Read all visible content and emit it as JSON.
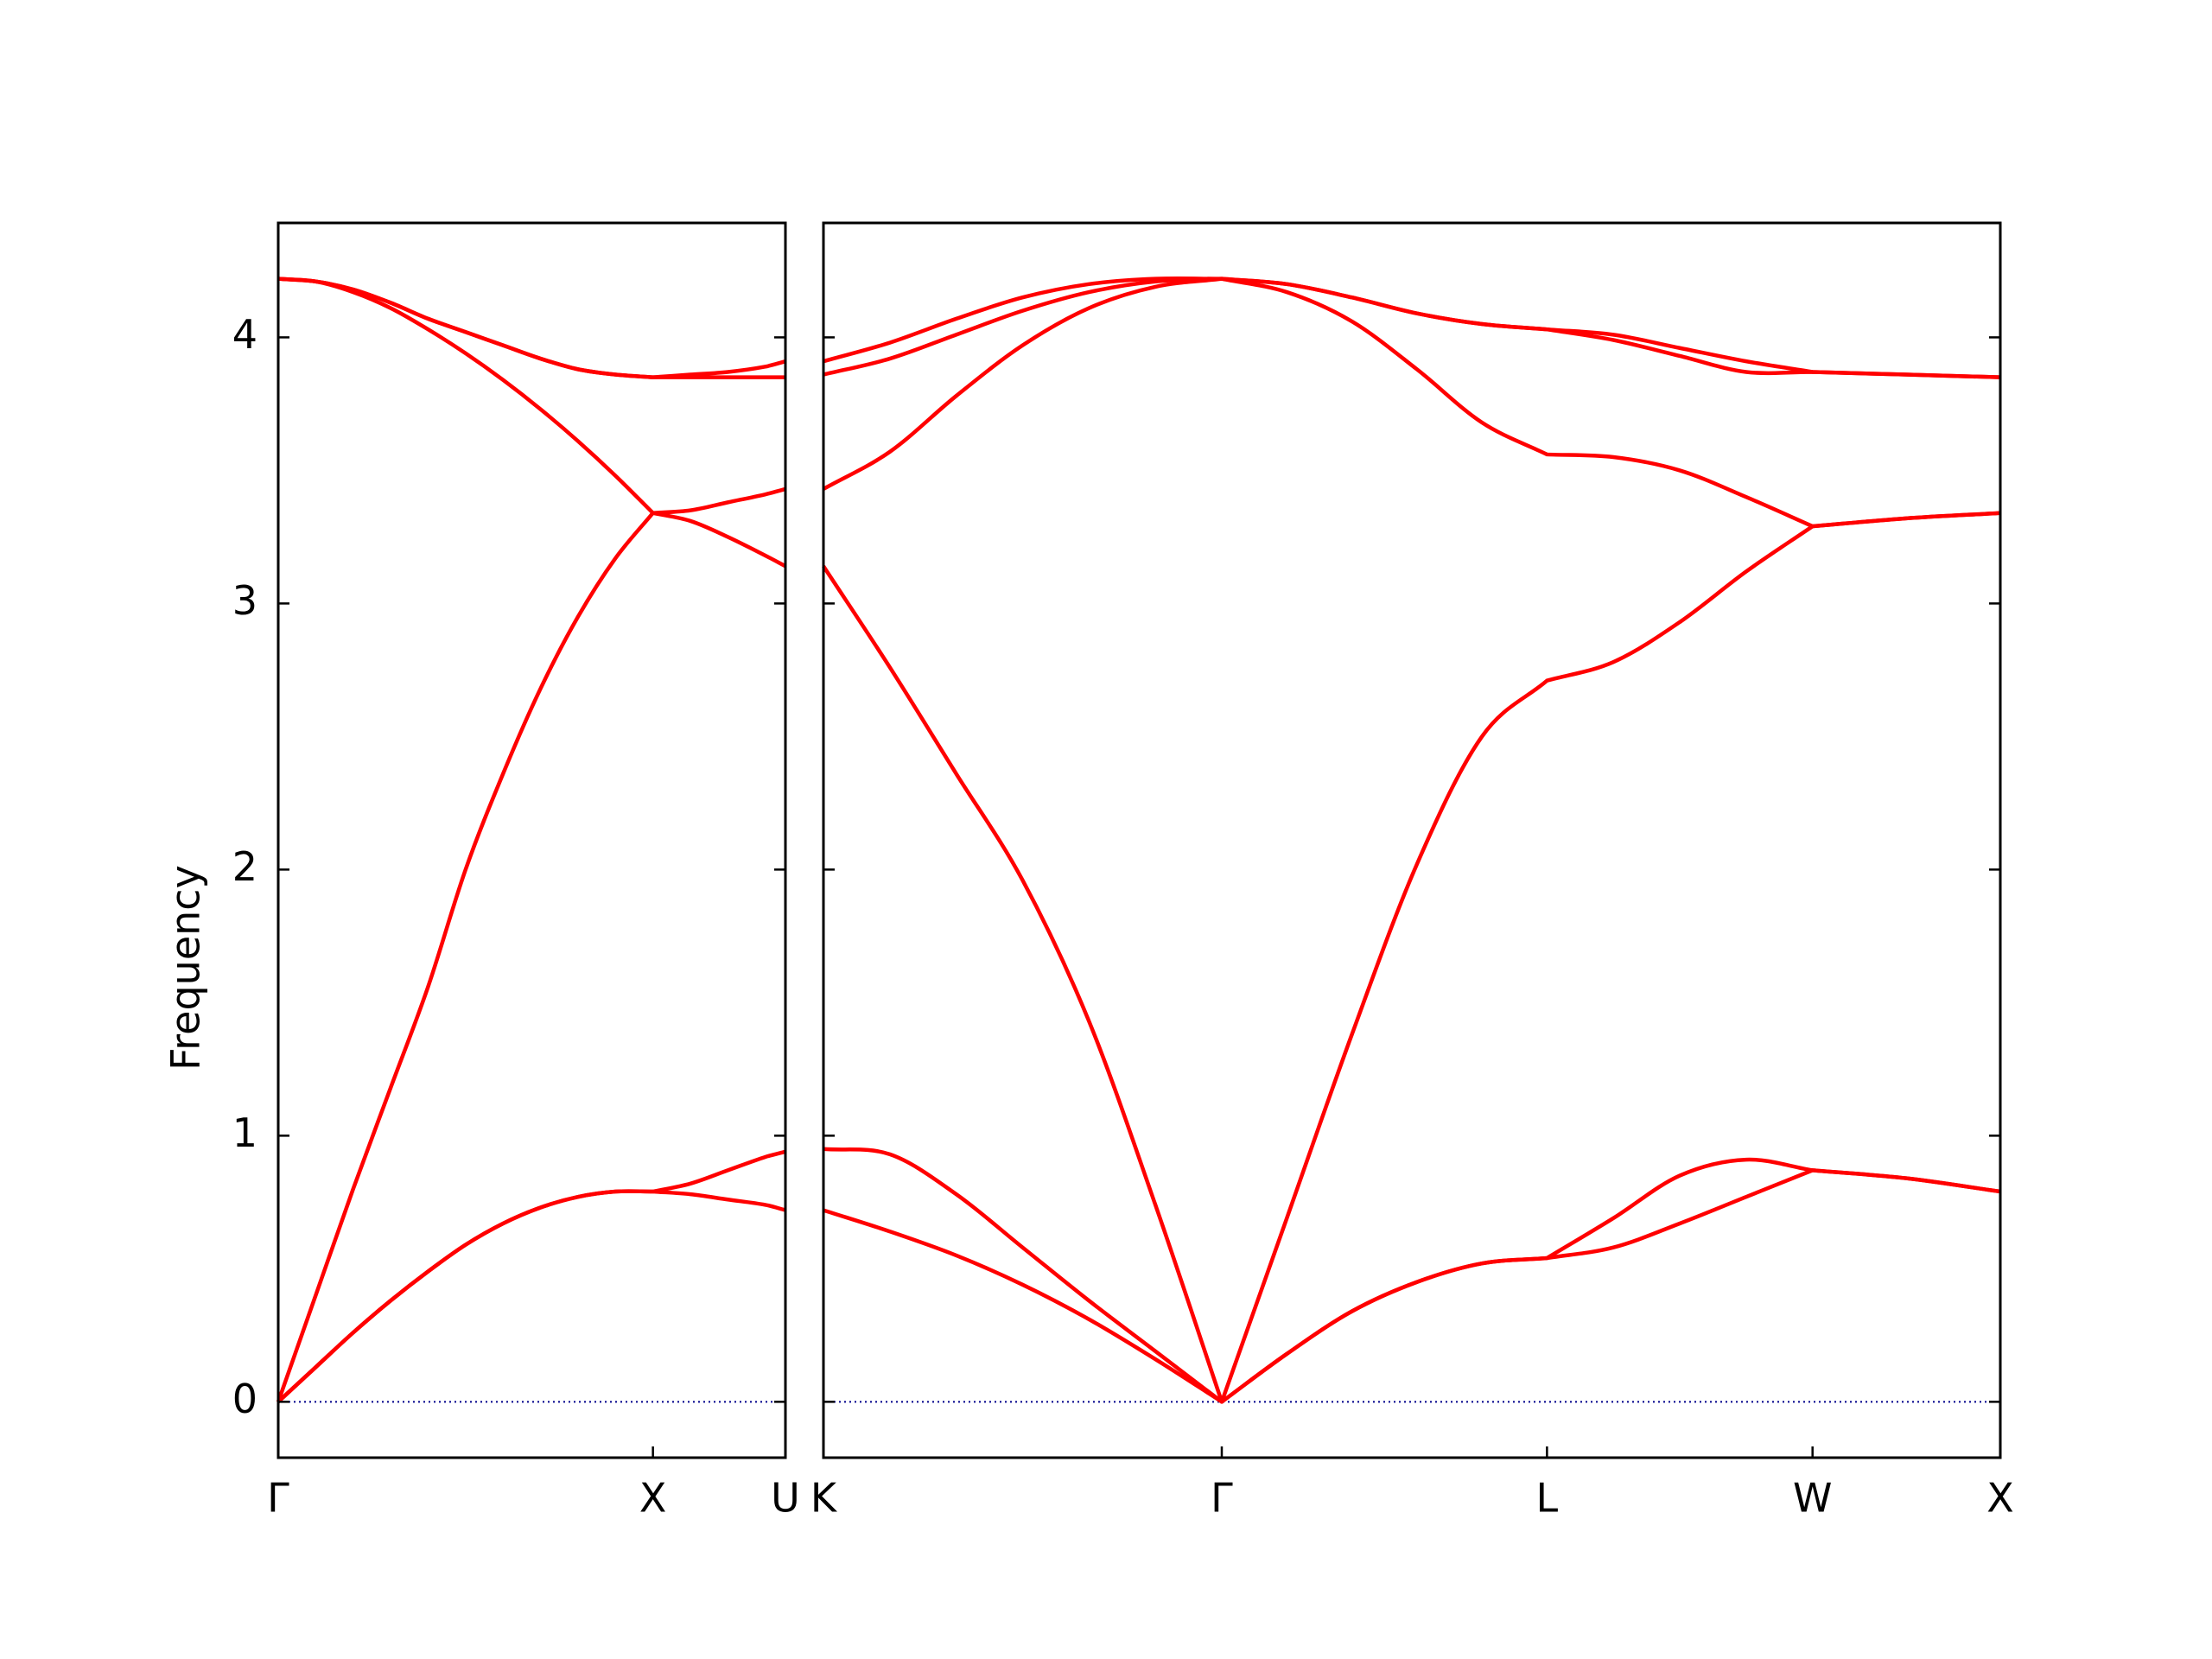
{
  "chart_data": [
    {
      "type": "line",
      "ylabel": "Frequency",
      "x": [
        0,
        0.1,
        0.2,
        0.3,
        0.4,
        0.5,
        0.6,
        0.7,
        0.8,
        0.9,
        1.0,
        1.1,
        1.2,
        1.3,
        1.3536
      ],
      "xlim": [
        0,
        1.3536
      ],
      "xticks": [
        {
          "value": 0,
          "label": "Γ"
        },
        {
          "value": 1.0,
          "label": "X"
        },
        {
          "value": 1.3536,
          "label": "U"
        }
      ],
      "ylim": [
        -0.21,
        4.43
      ],
      "yticks": [
        0,
        1,
        2,
        3,
        4
      ],
      "ytick_labels": true,
      "zero_line": {
        "value": 0,
        "color": "#00008b"
      },
      "series": [
        {
          "color": "#ff0000",
          "values": [
            0,
            0.13,
            0.26,
            0.38,
            0.49,
            0.59,
            0.67,
            0.73,
            0.77,
            0.79,
            0.79,
            0.82,
            0.87,
            0.92,
            0.94
          ]
        },
        {
          "color": "#ff0000",
          "values": [
            0,
            0.13,
            0.26,
            0.38,
            0.49,
            0.59,
            0.67,
            0.73,
            0.77,
            0.79,
            0.79,
            0.78,
            0.76,
            0.74,
            0.72
          ]
        },
        {
          "color": "#ff0000",
          "values": [
            0,
            0.4,
            0.8,
            1.18,
            1.56,
            2.0,
            2.36,
            2.68,
            2.95,
            3.17,
            3.34,
            3.35,
            3.38,
            3.41,
            3.43
          ]
        },
        {
          "color": "#ff0000",
          "values": [
            4.22,
            4.21,
            4.17,
            4.11,
            4.03,
            3.94,
            3.84,
            3.73,
            3.61,
            3.48,
            3.34,
            3.31,
            3.25,
            3.18,
            3.14
          ]
        },
        {
          "color": "#ff0000",
          "values": [
            4.22,
            4.21,
            4.18,
            4.13,
            4.07,
            4.02,
            3.97,
            3.92,
            3.88,
            3.86,
            3.85,
            3.85,
            3.85,
            3.85,
            3.85
          ]
        },
        {
          "color": "#ff0000",
          "values": [
            4.22,
            4.21,
            4.18,
            4.13,
            4.07,
            4.02,
            3.97,
            3.92,
            3.88,
            3.86,
            3.85,
            3.86,
            3.87,
            3.89,
            3.91
          ]
        }
      ]
    },
    {
      "type": "line",
      "x": [
        1.3536,
        1.5304,
        1.7072,
        1.8839,
        2.0607,
        2.2375,
        2.4143,
        2.5875,
        2.7607,
        2.9339,
        3.1071,
        3.2803,
        3.4571,
        3.6338,
        3.8106,
        3.9874,
        4.2374,
        4.4874
      ],
      "xlim": [
        1.3536,
        4.4874
      ],
      "xticks": [
        {
          "value": 1.3536,
          "label": "K"
        },
        {
          "value": 2.4143,
          "label": "Γ"
        },
        {
          "value": 3.2803,
          "label": "L"
        },
        {
          "value": 3.9874,
          "label": "W"
        },
        {
          "value": 4.4874,
          "label": "X"
        }
      ],
      "ylim": [
        -0.21,
        4.43
      ],
      "yticks": [
        0,
        1,
        2,
        3,
        4
      ],
      "ytick_labels": false,
      "zero_line": {
        "value": 0,
        "color": "#00008b"
      },
      "series": [
        {
          "color": "#ff0000",
          "values": [
            0.72,
            0.64,
            0.55,
            0.44,
            0.31,
            0.16,
            0,
            0.18,
            0.34,
            0.45,
            0.52,
            0.54,
            0.58,
            0.67,
            0.77,
            0.87,
            0.84,
            0.79
          ]
        },
        {
          "color": "#ff0000",
          "values": [
            0.95,
            0.93,
            0.78,
            0.58,
            0.38,
            0.19,
            0,
            0.18,
            0.34,
            0.45,
            0.52,
            0.54,
            0.69,
            0.85,
            0.91,
            0.87,
            0.84,
            0.79
          ]
        },
        {
          "color": "#ff0000",
          "values": [
            3.14,
            2.76,
            2.36,
            1.96,
            1.43,
            0.74,
            0,
            0.69,
            1.38,
            2.02,
            2.5,
            2.71,
            2.78,
            2.93,
            3.12,
            3.29,
            3.32,
            3.34
          ]
        },
        {
          "color": "#ff0000",
          "values": [
            3.43,
            3.57,
            3.78,
            3.97,
            4.11,
            4.19,
            4.22,
            4.17,
            4.06,
            3.88,
            3.68,
            3.56,
            3.55,
            3.5,
            3.4,
            3.29,
            3.32,
            3.34
          ]
        },
        {
          "color": "#ff0000",
          "values": [
            3.86,
            3.92,
            4.01,
            4.1,
            4.17,
            4.21,
            4.22,
            4.2,
            4.15,
            4.09,
            4.05,
            4.03,
            3.99,
            3.93,
            3.87,
            3.87,
            3.86,
            3.85
          ]
        },
        {
          "color": "#ff0000",
          "values": [
            3.91,
            3.98,
            4.07,
            4.15,
            4.2,
            4.22,
            4.22,
            4.2,
            4.15,
            4.09,
            4.05,
            4.03,
            4.01,
            3.96,
            3.91,
            3.87,
            3.86,
            3.85
          ]
        }
      ]
    }
  ]
}
